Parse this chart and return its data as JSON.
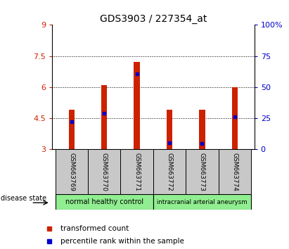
{
  "title": "GDS3903 / 227354_at",
  "samples": [
    "GSM663769",
    "GSM663770",
    "GSM663771",
    "GSM663772",
    "GSM663773",
    "GSM663774"
  ],
  "red_bar_heights": [
    4.9,
    6.1,
    7.2,
    4.9,
    4.9,
    6.0
  ],
  "blue_marker_values": [
    4.32,
    4.75,
    6.65,
    3.32,
    3.28,
    4.58
  ],
  "y_min": 3.0,
  "y_max": 9.0,
  "y_ticks_left": [
    3,
    4.5,
    6,
    7.5,
    9
  ],
  "y_ticks_right": [
    0,
    25,
    50,
    75,
    100
  ],
  "bar_color": "#cc2200",
  "marker_color": "#0000cc",
  "bar_width": 0.18,
  "plot_bg_color": "#ffffff",
  "label_area_color": "#c8c8c8",
  "group1_color": "#90ee90",
  "group2_color": "#90ee90",
  "disease_state_label": "disease state",
  "legend_red_label": "transformed count",
  "legend_blue_label": "percentile rank within the sample",
  "group1_label": "normal healthy control",
  "group2_label": "intracranial arterial aneurysm"
}
